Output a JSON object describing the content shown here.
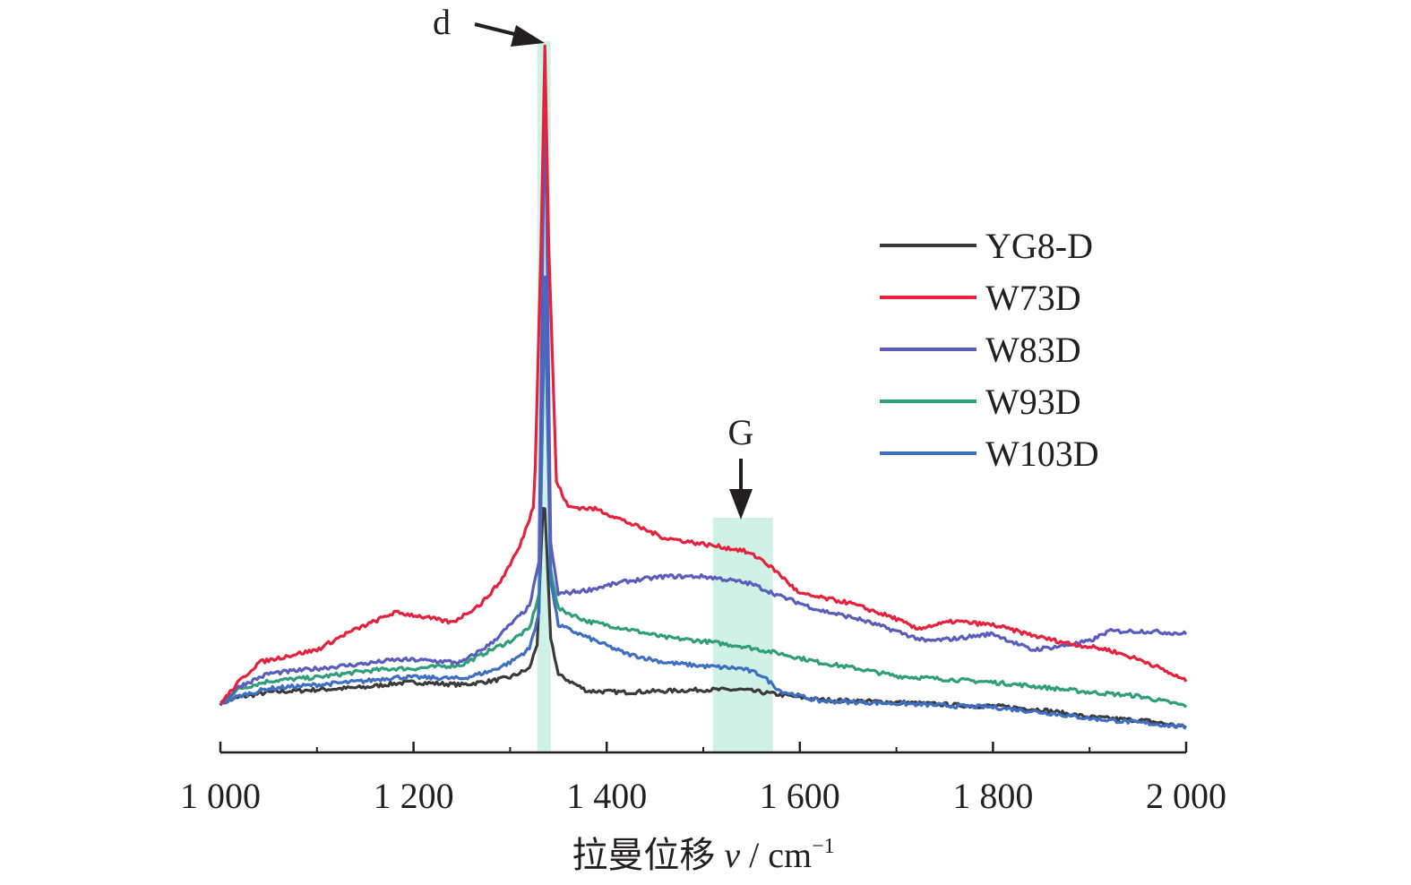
{
  "chart_data": {
    "type": "line",
    "xlabel": "拉曼位移 ν / cm⁻¹",
    "xlabel_parts": {
      "main": "拉曼位移 ",
      "var": "v",
      "unit": " / cm",
      "sup": "−1"
    },
    "ylabel": "",
    "xlim": [
      1000,
      2000
    ],
    "x_ticks": [
      1000,
      1200,
      1400,
      1600,
      1800,
      2000
    ],
    "x_tick_labels": [
      "1 000",
      "1 200",
      "1 400",
      "1 600",
      "1 800",
      "2 000"
    ],
    "y_scale": "arbitrary intensity, no axis shown",
    "legend_position": "right",
    "grid": false,
    "highlight_bands": [
      {
        "label": "d",
        "x_range": [
          1328,
          1342
        ],
        "color": "#c8efe0"
      },
      {
        "label": "G",
        "x_range": [
          1510,
          1572
        ],
        "color": "#c8efe0"
      }
    ],
    "annotations": [
      {
        "text": "d",
        "points_to_x": 1335
      },
      {
        "text": "G",
        "points_to_x": 1540
      }
    ],
    "series": [
      {
        "name": "YG8-D",
        "color": "#3b3b3b",
        "points": [
          [
            1000,
            12
          ],
          [
            1020,
            17
          ],
          [
            1050,
            21
          ],
          [
            1100,
            23
          ],
          [
            1150,
            25
          ],
          [
            1180,
            28
          ],
          [
            1200,
            29
          ],
          [
            1250,
            27
          ],
          [
            1280,
            30
          ],
          [
            1300,
            33
          ],
          [
            1320,
            40
          ],
          [
            1328,
            60
          ],
          [
            1335,
            185
          ],
          [
            1342,
            65
          ],
          [
            1350,
            35
          ],
          [
            1380,
            22
          ],
          [
            1420,
            21
          ],
          [
            1460,
            22
          ],
          [
            1500,
            23
          ],
          [
            1540,
            23
          ],
          [
            1580,
            19
          ],
          [
            1620,
            15
          ],
          [
            1700,
            13
          ],
          [
            1780,
            10
          ],
          [
            1800,
            10
          ],
          [
            1850,
            7
          ],
          [
            1900,
            1
          ],
          [
            1960,
            -2
          ],
          [
            2000,
            -7
          ]
        ]
      },
      {
        "name": "W73D",
        "color": "#e4223d",
        "points": [
          [
            1000,
            12
          ],
          [
            1020,
            30
          ],
          [
            1040,
            45
          ],
          [
            1080,
            52
          ],
          [
            1100,
            55
          ],
          [
            1130,
            68
          ],
          [
            1160,
            78
          ],
          [
            1180,
            85
          ],
          [
            1200,
            83
          ],
          [
            1240,
            77
          ],
          [
            1270,
            92
          ],
          [
            1290,
            110
          ],
          [
            1310,
            138
          ],
          [
            1325,
            172
          ],
          [
            1332,
            380
          ],
          [
            1336,
            540
          ],
          [
            1340,
            380
          ],
          [
            1348,
            190
          ],
          [
            1360,
            170
          ],
          [
            1390,
            168
          ],
          [
            1420,
            158
          ],
          [
            1460,
            145
          ],
          [
            1500,
            140
          ],
          [
            1540,
            135
          ],
          [
            1560,
            128
          ],
          [
            1580,
            115
          ],
          [
            1600,
            100
          ],
          [
            1650,
            93
          ],
          [
            1700,
            80
          ],
          [
            1720,
            72
          ],
          [
            1760,
            78
          ],
          [
            1800,
            75
          ],
          [
            1850,
            65
          ],
          [
            1880,
            60
          ],
          [
            1920,
            55
          ],
          [
            1960,
            45
          ],
          [
            2000,
            30
          ]
        ]
      },
      {
        "name": "W83D",
        "color": "#5a5dbb",
        "points": [
          [
            1000,
            12
          ],
          [
            1020,
            26
          ],
          [
            1050,
            36
          ],
          [
            1100,
            40
          ],
          [
            1150,
            44
          ],
          [
            1180,
            47
          ],
          [
            1200,
            47
          ],
          [
            1250,
            45
          ],
          [
            1280,
            60
          ],
          [
            1300,
            75
          ],
          [
            1320,
            90
          ],
          [
            1330,
            125
          ],
          [
            1336,
            520
          ],
          [
            1342,
            140
          ],
          [
            1350,
            100
          ],
          [
            1380,
            103
          ],
          [
            1420,
            110
          ],
          [
            1460,
            114
          ],
          [
            1500,
            114
          ],
          [
            1520,
            112
          ],
          [
            1550,
            108
          ],
          [
            1580,
            98
          ],
          [
            1620,
            87
          ],
          [
            1660,
            80
          ],
          [
            1700,
            70
          ],
          [
            1730,
            62
          ],
          [
            1760,
            64
          ],
          [
            1800,
            68
          ],
          [
            1840,
            55
          ],
          [
            1870,
            58
          ],
          [
            1900,
            62
          ],
          [
            1920,
            70
          ],
          [
            1960,
            70
          ],
          [
            2000,
            68
          ]
        ]
      },
      {
        "name": "W93D",
        "color": "#2f9e79",
        "points": [
          [
            1000,
            12
          ],
          [
            1020,
            24
          ],
          [
            1050,
            30
          ],
          [
            1100,
            33
          ],
          [
            1150,
            38
          ],
          [
            1180,
            40
          ],
          [
            1200,
            40
          ],
          [
            1250,
            43
          ],
          [
            1280,
            55
          ],
          [
            1300,
            62
          ],
          [
            1320,
            72
          ],
          [
            1330,
            100
          ],
          [
            1336,
            340
          ],
          [
            1342,
            120
          ],
          [
            1350,
            88
          ],
          [
            1380,
            78
          ],
          [
            1420,
            72
          ],
          [
            1460,
            65
          ],
          [
            1500,
            62
          ],
          [
            1540,
            58
          ],
          [
            1580,
            52
          ],
          [
            1620,
            45
          ],
          [
            1660,
            40
          ],
          [
            1700,
            34
          ],
          [
            1740,
            32
          ],
          [
            1780,
            30
          ],
          [
            1800,
            29
          ],
          [
            1840,
            26
          ],
          [
            1900,
            21
          ],
          [
            1950,
            18
          ],
          [
            2000,
            10
          ]
        ]
      },
      {
        "name": "W103D",
        "color": "#3f6fc0",
        "points": [
          [
            1000,
            12
          ],
          [
            1020,
            18
          ],
          [
            1050,
            24
          ],
          [
            1100,
            27
          ],
          [
            1150,
            30
          ],
          [
            1180,
            33
          ],
          [
            1200,
            33
          ],
          [
            1250,
            32
          ],
          [
            1280,
            38
          ],
          [
            1300,
            45
          ],
          [
            1320,
            56
          ],
          [
            1330,
            85
          ],
          [
            1336,
            355
          ],
          [
            1342,
            110
          ],
          [
            1350,
            75
          ],
          [
            1380,
            65
          ],
          [
            1420,
            52
          ],
          [
            1460,
            45
          ],
          [
            1500,
            42
          ],
          [
            1540,
            40
          ],
          [
            1560,
            35
          ],
          [
            1580,
            22
          ],
          [
            1620,
            14
          ],
          [
            1700,
            12
          ],
          [
            1760,
            10
          ],
          [
            1800,
            9
          ],
          [
            1850,
            5
          ],
          [
            1900,
            0
          ],
          [
            1960,
            -4
          ],
          [
            2000,
            -7
          ]
        ]
      }
    ]
  }
}
